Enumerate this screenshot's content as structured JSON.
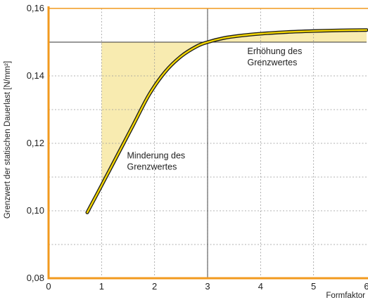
{
  "chart_data": {
    "type": "line",
    "xlabel": "Formfaktor",
    "ylabel": "Grenzwert der statischen Dauerlast [N/mm²]",
    "xlim": [
      0,
      6
    ],
    "ylim": [
      0.08,
      0.16
    ],
    "x_ticks": [
      "0",
      "1",
      "2",
      "3",
      "4",
      "5",
      "6"
    ],
    "y_ticks": [
      {
        "value": 0.08,
        "label": "0,08"
      },
      {
        "value": 0.1,
        "label": "0,10"
      },
      {
        "value": 0.12,
        "label": "0,12"
      },
      {
        "value": 0.14,
        "label": "0,14"
      },
      {
        "value": 0.16,
        "label": "0,16"
      }
    ],
    "grid": true,
    "reference": {
      "x": 3,
      "y": 0.15
    },
    "series": [
      {
        "color": "#f2d500",
        "x": [
          0.73,
          1.0,
          1.3,
          1.6,
          1.9,
          2.2,
          2.5,
          2.8,
          3.0,
          3.3,
          3.6,
          4.0,
          4.5,
          5.0,
          5.5,
          6.0
        ],
        "y": [
          0.0995,
          0.1075,
          0.1165,
          0.1255,
          0.1345,
          0.1412,
          0.1458,
          0.1488,
          0.15,
          0.1512,
          0.1519,
          0.1525,
          0.153,
          0.1533,
          0.1535,
          0.1536
        ]
      }
    ],
    "annotations": [
      {
        "lines": [
          "Minderung des",
          "Grenzwertes"
        ],
        "x": 1.48,
        "y": 0.1155
      },
      {
        "lines": [
          "Erhöhung des",
          "Grenzwertes"
        ],
        "x": 3.75,
        "y": 0.1465
      }
    ],
    "colors": {
      "axis": "#f29a1f",
      "fill": "#f8ebb0",
      "curve": "#f2d500",
      "grid": "#999999"
    }
  }
}
